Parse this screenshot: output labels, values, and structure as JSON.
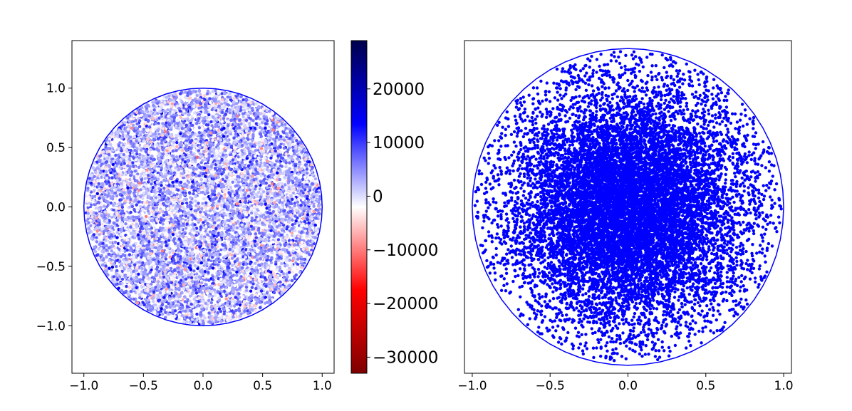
{
  "chart_data": [
    {
      "type": "scatter",
      "panel": "left",
      "title": "",
      "xlabel": "",
      "ylabel": "",
      "xlim": [
        -1.1,
        1.1
      ],
      "ylim": [
        -1.4,
        1.4
      ],
      "xticks": [
        -1.0,
        -0.5,
        0.0,
        0.5,
        1.0
      ],
      "xtick_labels": [
        "−1.0",
        "−0.5",
        "0.0",
        "0.5",
        "1.0"
      ],
      "yticks": [
        -1.0,
        -0.5,
        0.0,
        0.5,
        1.0
      ],
      "ytick_labels": [
        "−1.0",
        "−0.5",
        "0.0",
        "0.5",
        "1.0"
      ],
      "grid": false,
      "boundary_circle": {
        "center": [
          0,
          0
        ],
        "radius": 1.0,
        "color": "#0000ff"
      },
      "points": {
        "distribution": "uniform in unit disk",
        "count_approx": 9000,
        "color_value_range": [
          -13000,
          18000
        ],
        "color_value_mean": 3000,
        "colormap": "seismic_r"
      },
      "colorbar": {
        "vmin": -33000,
        "vmax": 29000,
        "ticks": [
          -30000,
          -20000,
          -10000,
          0,
          10000,
          20000
        ],
        "tick_labels": [
          "−30000",
          "−20000",
          "−10000",
          "0",
          "10000",
          "20000"
        ],
        "colors": [
          "#7f0000",
          "#ff0000",
          "#ffffff",
          "#0000ff",
          "#00004c"
        ]
      }
    },
    {
      "type": "scatter",
      "panel": "right",
      "title": "",
      "xlabel": "",
      "ylabel": "",
      "xlim": [
        -1.05,
        1.05
      ],
      "ylim": [
        -1.05,
        1.05
      ],
      "xticks": [
        -1.0,
        -0.5,
        0.0,
        0.5,
        1.0
      ],
      "xtick_labels": [
        "−1.0",
        "−0.5",
        "0.0",
        "0.5",
        "1.0"
      ],
      "yticks": [],
      "grid": false,
      "boundary_circle": {
        "center": [
          0,
          0
        ],
        "radius": 1.0,
        "color": "#0000ff"
      },
      "points": {
        "distribution": "dense at center, sparser toward edge of unit disk",
        "count_approx": 12000,
        "color": "#0000ff"
      }
    }
  ]
}
